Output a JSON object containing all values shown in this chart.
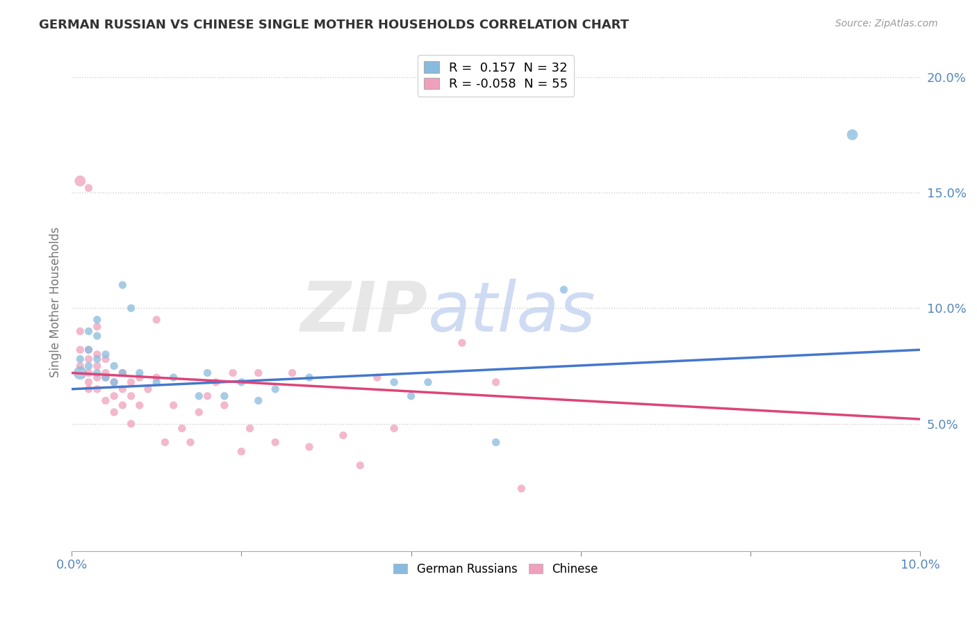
{
  "title": "GERMAN RUSSIAN VS CHINESE SINGLE MOTHER HOUSEHOLDS CORRELATION CHART",
  "source": "Source: ZipAtlas.com",
  "ylabel": "Single Mother Households",
  "xlim": [
    0.0,
    0.1
  ],
  "ylim": [
    -0.005,
    0.21
  ],
  "blue_color": "#88bbdd",
  "pink_color": "#f0a0bc",
  "blue_line_color": "#4477cc",
  "pink_line_color": "#dd4477",
  "watermark_zip": "ZIP",
  "watermark_atlas": "atlas",
  "german_russian_points": [
    [
      0.001,
      0.072
    ],
    [
      0.001,
      0.078
    ],
    [
      0.002,
      0.075
    ],
    [
      0.002,
      0.082
    ],
    [
      0.002,
      0.09
    ],
    [
      0.003,
      0.078
    ],
    [
      0.003,
      0.088
    ],
    [
      0.003,
      0.095
    ],
    [
      0.003,
      0.072
    ],
    [
      0.004,
      0.07
    ],
    [
      0.004,
      0.08
    ],
    [
      0.005,
      0.075
    ],
    [
      0.005,
      0.068
    ],
    [
      0.006,
      0.072
    ],
    [
      0.006,
      0.11
    ],
    [
      0.007,
      0.1
    ],
    [
      0.008,
      0.072
    ],
    [
      0.01,
      0.068
    ],
    [
      0.012,
      0.07
    ],
    [
      0.015,
      0.062
    ],
    [
      0.016,
      0.072
    ],
    [
      0.018,
      0.062
    ],
    [
      0.02,
      0.068
    ],
    [
      0.022,
      0.06
    ],
    [
      0.024,
      0.065
    ],
    [
      0.028,
      0.07
    ],
    [
      0.038,
      0.068
    ],
    [
      0.04,
      0.062
    ],
    [
      0.042,
      0.068
    ],
    [
      0.05,
      0.042
    ],
    [
      0.058,
      0.108
    ],
    [
      0.092,
      0.175
    ]
  ],
  "german_russian_sizes": [
    180,
    60,
    60,
    60,
    60,
    60,
    60,
    60,
    60,
    60,
    60,
    60,
    60,
    60,
    60,
    60,
    60,
    60,
    60,
    60,
    60,
    60,
    60,
    60,
    60,
    60,
    60,
    60,
    60,
    60,
    60,
    120
  ],
  "chinese_points": [
    [
      0.001,
      0.075
    ],
    [
      0.001,
      0.082
    ],
    [
      0.001,
      0.09
    ],
    [
      0.001,
      0.155
    ],
    [
      0.002,
      0.068
    ],
    [
      0.002,
      0.072
    ],
    [
      0.002,
      0.078
    ],
    [
      0.002,
      0.082
    ],
    [
      0.002,
      0.152
    ],
    [
      0.002,
      0.065
    ],
    [
      0.003,
      0.07
    ],
    [
      0.003,
      0.075
    ],
    [
      0.003,
      0.08
    ],
    [
      0.003,
      0.092
    ],
    [
      0.003,
      0.065
    ],
    [
      0.004,
      0.07
    ],
    [
      0.004,
      0.072
    ],
    [
      0.004,
      0.078
    ],
    [
      0.004,
      0.06
    ],
    [
      0.005,
      0.062
    ],
    [
      0.005,
      0.068
    ],
    [
      0.005,
      0.055
    ],
    [
      0.006,
      0.058
    ],
    [
      0.006,
      0.065
    ],
    [
      0.006,
      0.072
    ],
    [
      0.007,
      0.062
    ],
    [
      0.007,
      0.068
    ],
    [
      0.007,
      0.05
    ],
    [
      0.008,
      0.058
    ],
    [
      0.008,
      0.07
    ],
    [
      0.009,
      0.065
    ],
    [
      0.01,
      0.07
    ],
    [
      0.01,
      0.095
    ],
    [
      0.011,
      0.042
    ],
    [
      0.012,
      0.058
    ],
    [
      0.013,
      0.048
    ],
    [
      0.014,
      0.042
    ],
    [
      0.015,
      0.055
    ],
    [
      0.016,
      0.062
    ],
    [
      0.017,
      0.068
    ],
    [
      0.018,
      0.058
    ],
    [
      0.019,
      0.072
    ],
    [
      0.02,
      0.038
    ],
    [
      0.021,
      0.048
    ],
    [
      0.022,
      0.072
    ],
    [
      0.024,
      0.042
    ],
    [
      0.026,
      0.072
    ],
    [
      0.028,
      0.04
    ],
    [
      0.032,
      0.045
    ],
    [
      0.034,
      0.032
    ],
    [
      0.036,
      0.07
    ],
    [
      0.038,
      0.048
    ],
    [
      0.046,
      0.085
    ],
    [
      0.05,
      0.068
    ],
    [
      0.053,
      0.022
    ]
  ],
  "chinese_sizes": [
    60,
    60,
    60,
    120,
    60,
    60,
    60,
    60,
    60,
    60,
    60,
    60,
    60,
    60,
    60,
    60,
    60,
    60,
    60,
    60,
    60,
    60,
    60,
    60,
    60,
    60,
    60,
    60,
    60,
    60,
    60,
    60,
    60,
    60,
    60,
    60,
    60,
    60,
    60,
    60,
    60,
    60,
    60,
    60,
    60,
    60,
    60,
    60,
    60,
    60,
    60,
    60,
    60,
    60,
    60
  ],
  "legend_blue_label": "R =  0.157  N = 32",
  "legend_pink_label": "R = -0.058  N = 55"
}
